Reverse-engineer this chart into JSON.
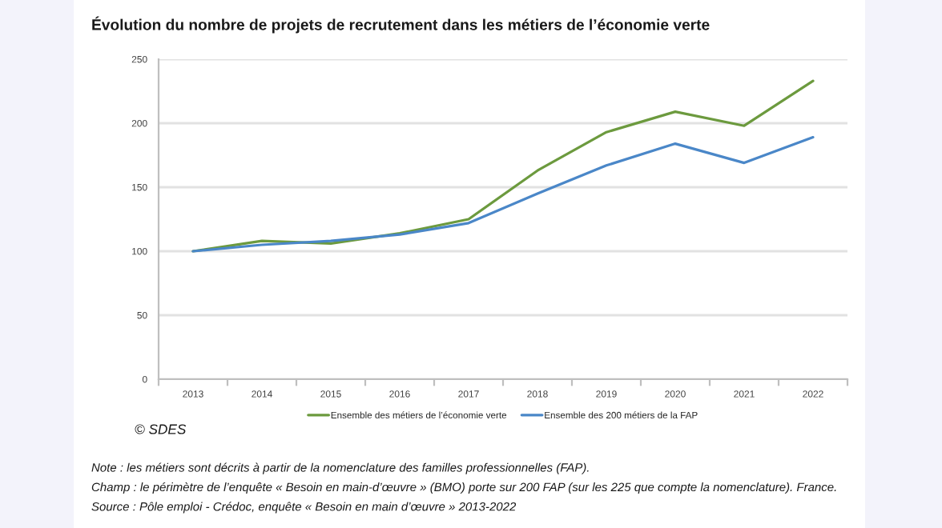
{
  "chart_data": {
    "type": "line",
    "title": "Évolution du nombre de projets de recrutement dans les métiers de l’économie verte",
    "categories": [
      "2013",
      "2014",
      "2015",
      "2016",
      "2017",
      "2018",
      "2019",
      "2020",
      "2021",
      "2022"
    ],
    "series": [
      {
        "name": "Ensemble des métiers de l’économie verte",
        "color": "#6c9a3e",
        "values": [
          100,
          108,
          106,
          114,
          125,
          163,
          193,
          209,
          198,
          233
        ]
      },
      {
        "name": "Ensemble des 200 métiers de la FAP",
        "color": "#4a87c8",
        "values": [
          100,
          105,
          108,
          113,
          122,
          145,
          167,
          184,
          169,
          189
        ]
      }
    ],
    "ylim": [
      0,
      250
    ],
    "yticks": [
      0,
      50,
      100,
      150,
      200,
      250
    ],
    "grid": "y",
    "legend": "bottom",
    "annotations": [
      "© SDES",
      "Note : les métiers sont décrits à partir de la nomenclature des familles professionnelles (FAP).",
      "Champ : le périmètre de l’enquête « Besoin en main-d’œuvre » (BMO) porte sur 200 FAP (sur les 225 que compte la nomenclature). France.",
      "Source : Pôle emploi - Crédoc, enquête « Besoin en main d’œuvre » 2013-2022"
    ]
  }
}
